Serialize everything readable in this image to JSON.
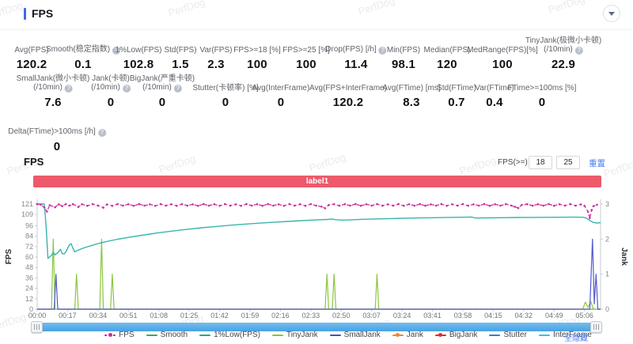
{
  "watermark_text": "PerfDog",
  "header": {
    "title": "FPS"
  },
  "stats": {
    "rows": [
      [
        {
          "label": "Avg(FPS)",
          "value": "120.2"
        },
        {
          "label": "Smooth(稳定指数)",
          "info": true,
          "value": "0.1"
        },
        {
          "label": "1%Low(FPS)",
          "value": "102.8"
        },
        {
          "label": "Std(FPS)",
          "value": "1.5"
        },
        {
          "label": "Var(FPS)",
          "value": "2.3"
        },
        {
          "label": "FPS>=18 [%]",
          "value": "100"
        },
        {
          "label": "FPS>=25 [%]",
          "value": "100"
        },
        {
          "label": "Drop(FPS) [/h]",
          "info": true,
          "value": "11.4"
        },
        {
          "label": "Min(FPS)",
          "value": "98.1"
        },
        {
          "label": "Median(FPS)",
          "value": "120"
        },
        {
          "label": "MedRange(FPS)[%]",
          "value": "100"
        },
        {
          "label": "TinyJank(极微小卡顿)",
          "label2": "(/10min)",
          "info": true,
          "value": "22.9"
        }
      ],
      [
        {
          "label": "SmallJank(微小卡顿)",
          "label2": "(/10min)",
          "info": true,
          "value": "7.6"
        },
        {
          "label": "Jank(卡顿)",
          "label2": "(/10min)",
          "info": true,
          "value": "0"
        },
        {
          "label": "BigJank(严重卡顿)",
          "label2": "(/10min)",
          "info": true,
          "value": "0"
        },
        {
          "label": "Stutter(卡顿率) [%]",
          "value": "0"
        },
        {
          "label": "Avg(InterFrame)",
          "value": "0"
        },
        {
          "label": "Avg(FPS+InterFrame)",
          "value": "120.2"
        },
        {
          "label": "Avg(FTime) [ms]",
          "value": "8.3"
        },
        {
          "label": "Std(FTime)",
          "value": "0.7"
        },
        {
          "label": "Var(FTime)",
          "value": "0.4"
        },
        {
          "label": "FTime>=100ms [%]",
          "value": "0"
        }
      ],
      [
        {
          "label": "Delta(FTime)>100ms [/h]",
          "info": true,
          "value": "0"
        }
      ]
    ]
  },
  "chart_section": {
    "title": "FPS",
    "fps_filter_label": "FPS(>=)",
    "fps_min": "18",
    "fps_max": "25",
    "reset_label": "重置",
    "banner_label": "label1",
    "hide_all_label": "全隐藏"
  },
  "chart_data": {
    "type": "line",
    "title": "FPS",
    "x_unit": "time (mm:ss)",
    "x_range": [
      0,
      315
    ],
    "x_tick_labels": [
      "00:00",
      "00:17",
      "00:34",
      "00:51",
      "01:08",
      "01:25",
      "01:42",
      "01:59",
      "02:16",
      "02:33",
      "02:50",
      "03:07",
      "03:24",
      "03:41",
      "03:58",
      "04:15",
      "04:32",
      "04:49",
      "05:06"
    ],
    "x_tick_interval_seconds": 17,
    "left_axis": {
      "label": "FPS",
      "range": [
        0,
        121
      ],
      "ticks": [
        0,
        12,
        24,
        36,
        48,
        60,
        72,
        84,
        96,
        109,
        121
      ]
    },
    "right_axis": {
      "label": "Jank",
      "range": [
        0,
        3
      ],
      "ticks": [
        0,
        1,
        2,
        3
      ]
    },
    "legend_position": "bottom",
    "grid": false,
    "legend": [
      {
        "label": "FPS",
        "color": "#c92b9e",
        "marker": "dash-dot"
      },
      {
        "label": "Smooth",
        "color": "#3daa55",
        "marker": "solid"
      },
      {
        "label": "1%Low(FPS)",
        "color": "#1fa89d",
        "marker": "solid"
      },
      {
        "label": "TinyJank",
        "color": "#85c43a",
        "marker": "solid"
      },
      {
        "label": "SmallJank",
        "color": "#4450c8",
        "marker": "solid"
      },
      {
        "label": "Jank",
        "color": "#f0862f",
        "marker": "solid-dot"
      },
      {
        "label": "BigJank",
        "color": "#e02f2f",
        "marker": "solid-dot"
      },
      {
        "label": "Stutter",
        "color": "#2f7fdb",
        "marker": "solid"
      },
      {
        "label": "InterFrame",
        "color": "#2cc5e8",
        "marker": "solid"
      }
    ],
    "series": [
      {
        "name": "InterFrame",
        "color": "#2cc5e8",
        "axis": "left",
        "style": "solid",
        "width": 1,
        "points": [
          [
            0,
            0
          ],
          [
            315,
            0
          ]
        ]
      },
      {
        "name": "Stutter",
        "color": "#2f7fdb",
        "axis": "left",
        "style": "solid",
        "width": 1,
        "points": [
          [
            0,
            0
          ],
          [
            315,
            0
          ]
        ]
      },
      {
        "name": "BigJank",
        "color": "#e02f2f",
        "axis": "right",
        "style": "solid",
        "width": 1,
        "points": [
          [
            0,
            0
          ],
          [
            315,
            0
          ]
        ]
      },
      {
        "name": "Smooth",
        "color": "#3daa55",
        "axis": "left",
        "style": "solid",
        "width": 1,
        "points": [
          [
            0,
            0.1
          ],
          [
            315,
            0.1
          ]
        ]
      },
      {
        "name": "Jank",
        "color": "#f0862f",
        "axis": "right",
        "style": "dashed",
        "width": 1.2,
        "points": [
          [
            0,
            0
          ],
          [
            315,
            0
          ]
        ]
      },
      {
        "name": "TinyJank",
        "color": "#8cc63f",
        "axis": "right",
        "style": "solid",
        "width": 1.2,
        "points": [
          [
            0,
            0
          ],
          [
            8,
            0
          ],
          [
            9,
            2
          ],
          [
            10,
            0
          ],
          [
            21,
            0
          ],
          [
            22,
            1
          ],
          [
            23,
            0
          ],
          [
            35,
            0
          ],
          [
            36,
            2
          ],
          [
            37,
            0
          ],
          [
            41,
            0
          ],
          [
            42,
            1
          ],
          [
            43,
            0
          ],
          [
            161,
            0
          ],
          [
            162,
            1
          ],
          [
            163,
            0
          ],
          [
            165,
            0
          ],
          [
            166,
            1
          ],
          [
            167,
            0
          ],
          [
            189,
            0
          ],
          [
            190,
            1
          ],
          [
            191,
            0
          ],
          [
            305,
            0
          ],
          [
            306.5,
            0.2
          ],
          [
            308,
            0.05
          ],
          [
            309.5,
            0.22
          ],
          [
            311,
            0
          ],
          [
            315,
            0
          ]
        ]
      },
      {
        "name": "SmallJank",
        "color": "#5158ce",
        "axis": "right",
        "style": "solid",
        "width": 1.2,
        "points": [
          [
            0,
            0
          ],
          [
            9.5,
            0
          ],
          [
            10.5,
            1
          ],
          [
            11.5,
            0
          ],
          [
            309,
            0
          ],
          [
            310.5,
            2
          ],
          [
            311.5,
            0.15
          ],
          [
            312.5,
            1
          ],
          [
            313.5,
            0
          ],
          [
            315,
            0
          ]
        ]
      },
      {
        "name": "1%Low(FPS)",
        "color": "#38b6ab",
        "axis": "left",
        "style": "solid",
        "width": 1.4,
        "points": [
          [
            0,
            121
          ],
          [
            4,
            121
          ],
          [
            5,
            95
          ],
          [
            6,
            58.5
          ],
          [
            8,
            62
          ],
          [
            9,
            65.5
          ],
          [
            10,
            62.5
          ],
          [
            12,
            66
          ],
          [
            13,
            69
          ],
          [
            14,
            64
          ],
          [
            15,
            63.5
          ],
          [
            16,
            66
          ],
          [
            17,
            70
          ],
          [
            18,
            74
          ],
          [
            19,
            75.5
          ],
          [
            20,
            70
          ],
          [
            21,
            66
          ],
          [
            23,
            68
          ],
          [
            26,
            70.5
          ],
          [
            30,
            73
          ],
          [
            34,
            75.5
          ],
          [
            39,
            78
          ],
          [
            45,
            80.5
          ],
          [
            52,
            83
          ],
          [
            60,
            85.5
          ],
          [
            68,
            88
          ],
          [
            76,
            90
          ],
          [
            84,
            92
          ],
          [
            92,
            93.7
          ],
          [
            100,
            95.2
          ],
          [
            108,
            96.6
          ],
          [
            116,
            97.9
          ],
          [
            124,
            99
          ],
          [
            132,
            100
          ],
          [
            140,
            101
          ],
          [
            148,
            101.9
          ],
          [
            156,
            102.7
          ],
          [
            162,
            103.3
          ],
          [
            165,
            103.8
          ],
          [
            167,
            103
          ],
          [
            171,
            102.5
          ],
          [
            176,
            102.9
          ],
          [
            182,
            103.4
          ],
          [
            190,
            103.9
          ],
          [
            198,
            104.3
          ],
          [
            206,
            104.7
          ],
          [
            214,
            105
          ],
          [
            222,
            105.3
          ],
          [
            230,
            105.6
          ],
          [
            238,
            105.8
          ],
          [
            243,
            106
          ],
          [
            245,
            104.9
          ],
          [
            252,
            105.1
          ],
          [
            260,
            105.3
          ],
          [
            268,
            105.5
          ],
          [
            276,
            105.6
          ],
          [
            284,
            105.7
          ],
          [
            292,
            105.8
          ],
          [
            300,
            105.9
          ],
          [
            305,
            105.8
          ],
          [
            307,
            105
          ],
          [
            309,
            102
          ],
          [
            311,
            99.8
          ],
          [
            313,
            99.2
          ],
          [
            315,
            99.6
          ]
        ]
      },
      {
        "name": "FPS",
        "color": "#cc2fa0",
        "axis": "left",
        "style": "dashed",
        "width": 1.3,
        "markers": true,
        "points": [
          [
            0,
            120.9
          ],
          [
            2,
            120.4
          ],
          [
            4,
            117
          ],
          [
            5.5,
            112.4
          ],
          [
            7,
            119.6
          ],
          [
            10,
            117.3
          ],
          [
            12,
            120.6
          ],
          [
            14,
            118.6
          ],
          [
            16,
            120.9
          ],
          [
            18,
            119.2
          ],
          [
            20,
            120.8
          ],
          [
            23,
            117.6
          ],
          [
            25,
            120.7
          ],
          [
            28,
            119
          ],
          [
            31,
            120.9
          ],
          [
            34,
            119.2
          ],
          [
            37,
            116.8
          ],
          [
            39,
            120.5
          ],
          [
            42,
            118.9
          ],
          [
            45,
            120.9
          ],
          [
            48,
            119.2
          ],
          [
            51,
            120.7
          ],
          [
            54,
            118.9
          ],
          [
            57,
            120.9
          ],
          [
            60,
            119.2
          ],
          [
            63,
            120.6
          ],
          [
            66,
            118.9
          ],
          [
            69,
            120.9
          ],
          [
            72,
            119.2
          ],
          [
            75,
            120.7
          ],
          [
            78,
            119
          ],
          [
            81,
            120.9
          ],
          [
            84,
            119.2
          ],
          [
            87,
            120.6
          ],
          [
            90,
            118.9
          ],
          [
            93,
            120.9
          ],
          [
            96,
            119.2
          ],
          [
            99,
            120.7
          ],
          [
            102,
            119
          ],
          [
            105,
            120.9
          ],
          [
            108,
            119.2
          ],
          [
            111,
            120.6
          ],
          [
            114,
            118.9
          ],
          [
            117,
            120.9
          ],
          [
            120,
            119.2
          ],
          [
            123,
            120.7
          ],
          [
            126,
            119
          ],
          [
            129,
            120.9
          ],
          [
            132,
            119.2
          ],
          [
            135,
            120.6
          ],
          [
            138,
            118.9
          ],
          [
            141,
            120.9
          ],
          [
            144,
            119.2
          ],
          [
            147,
            120.7
          ],
          [
            150,
            119
          ],
          [
            153,
            120.9
          ],
          [
            156,
            119.2
          ],
          [
            159,
            118
          ],
          [
            161,
            116.1
          ],
          [
            163,
            119.8
          ],
          [
            166,
            120.8
          ],
          [
            169,
            119.1
          ],
          [
            172,
            120.7
          ],
          [
            175,
            119.2
          ],
          [
            178,
            120.9
          ],
          [
            181,
            119
          ],
          [
            184,
            120.7
          ],
          [
            187,
            119.2
          ],
          [
            190,
            120.9
          ],
          [
            193,
            119.1
          ],
          [
            196,
            120.6
          ],
          [
            199,
            119.2
          ],
          [
            202,
            120.9
          ],
          [
            205,
            119
          ],
          [
            208,
            120.7
          ],
          [
            211,
            119.2
          ],
          [
            214,
            120.9
          ],
          [
            217,
            119.1
          ],
          [
            220,
            120.6
          ],
          [
            223,
            119.2
          ],
          [
            226,
            120.9
          ],
          [
            229,
            119
          ],
          [
            232,
            120.7
          ],
          [
            235,
            119.2
          ],
          [
            238,
            120.9
          ],
          [
            241,
            119.1
          ],
          [
            244,
            120.6
          ],
          [
            247,
            119.2
          ],
          [
            250,
            120.9
          ],
          [
            253,
            119
          ],
          [
            256,
            120.7
          ],
          [
            259,
            119.2
          ],
          [
            262,
            120.9
          ],
          [
            265,
            119.3
          ],
          [
            267,
            117.9
          ],
          [
            269,
            116.4
          ],
          [
            271,
            120
          ],
          [
            274,
            120.8
          ],
          [
            277,
            119.1
          ],
          [
            280,
            120.7
          ],
          [
            283,
            119.2
          ],
          [
            286,
            120.9
          ],
          [
            289,
            119
          ],
          [
            292,
            120.7
          ],
          [
            295,
            119.2
          ],
          [
            298,
            120.9
          ],
          [
            301,
            119.2
          ],
          [
            304,
            120.5
          ],
          [
            306,
            118.9
          ],
          [
            308,
            112
          ],
          [
            309,
            104.8
          ],
          [
            310,
            114
          ],
          [
            311,
            118.5
          ],
          [
            313,
            120.2
          ]
        ]
      }
    ]
  }
}
